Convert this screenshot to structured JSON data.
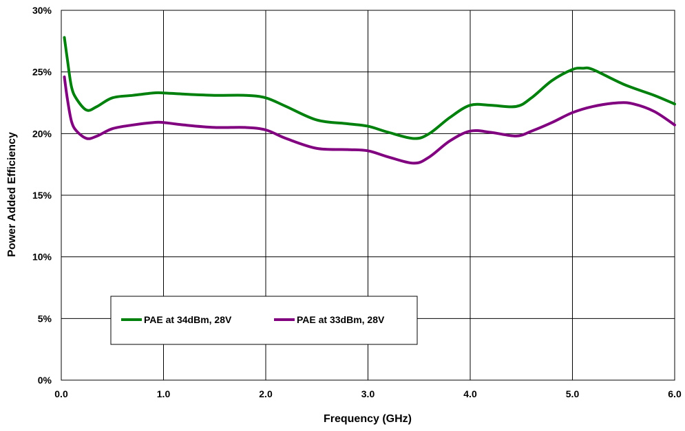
{
  "chart_data": {
    "type": "line",
    "title": "",
    "xlabel": "Frequency (GHz)",
    "ylabel": "Power Added Efficiency",
    "xlim": [
      0,
      6
    ],
    "ylim": [
      0,
      30
    ],
    "x_ticks": [
      "0.0",
      "1.0",
      "2.0",
      "3.0",
      "4.0",
      "5.0",
      "6.0"
    ],
    "y_ticks": [
      "0%",
      "5%",
      "10%",
      "15%",
      "20%",
      "25%",
      "30%"
    ],
    "grid": true,
    "legend_position": "lower-left",
    "series": [
      {
        "name": "PAE at 34dBm, 28V",
        "color": "#00800d",
        "x": [
          0.03,
          0.06,
          0.1,
          0.15,
          0.25,
          0.35,
          0.5,
          0.7,
          0.9,
          1.0,
          1.2,
          1.5,
          1.8,
          2.0,
          2.2,
          2.5,
          2.8,
          3.0,
          3.2,
          3.45,
          3.6,
          3.8,
          4.0,
          4.2,
          4.45,
          4.6,
          4.8,
          5.0,
          5.1,
          5.2,
          5.5,
          5.8,
          6.0
        ],
        "y": [
          27.8,
          26.0,
          23.8,
          22.8,
          21.9,
          22.2,
          22.9,
          23.1,
          23.3,
          23.3,
          23.2,
          23.1,
          23.1,
          22.9,
          22.2,
          21.1,
          20.8,
          20.6,
          20.1,
          19.6,
          20.0,
          21.3,
          22.3,
          22.3,
          22.2,
          22.9,
          24.3,
          25.2,
          25.3,
          25.2,
          24.0,
          23.1,
          22.4
        ]
      },
      {
        "name": "PAE at 33dBm, 28V",
        "color": "#800080",
        "x": [
          0.03,
          0.06,
          0.1,
          0.15,
          0.25,
          0.35,
          0.5,
          0.7,
          0.9,
          1.0,
          1.2,
          1.5,
          1.8,
          2.0,
          2.2,
          2.5,
          2.8,
          3.0,
          3.2,
          3.45,
          3.6,
          3.8,
          4.0,
          4.2,
          4.45,
          4.6,
          4.8,
          5.0,
          5.2,
          5.45,
          5.6,
          5.8,
          6.0
        ],
        "y": [
          24.6,
          22.8,
          21.0,
          20.2,
          19.6,
          19.8,
          20.4,
          20.7,
          20.9,
          20.9,
          20.7,
          20.5,
          20.5,
          20.3,
          19.6,
          18.8,
          18.7,
          18.6,
          18.1,
          17.6,
          18.1,
          19.4,
          20.2,
          20.1,
          19.8,
          20.2,
          20.9,
          21.7,
          22.2,
          22.5,
          22.4,
          21.8,
          20.7
        ]
      }
    ]
  }
}
